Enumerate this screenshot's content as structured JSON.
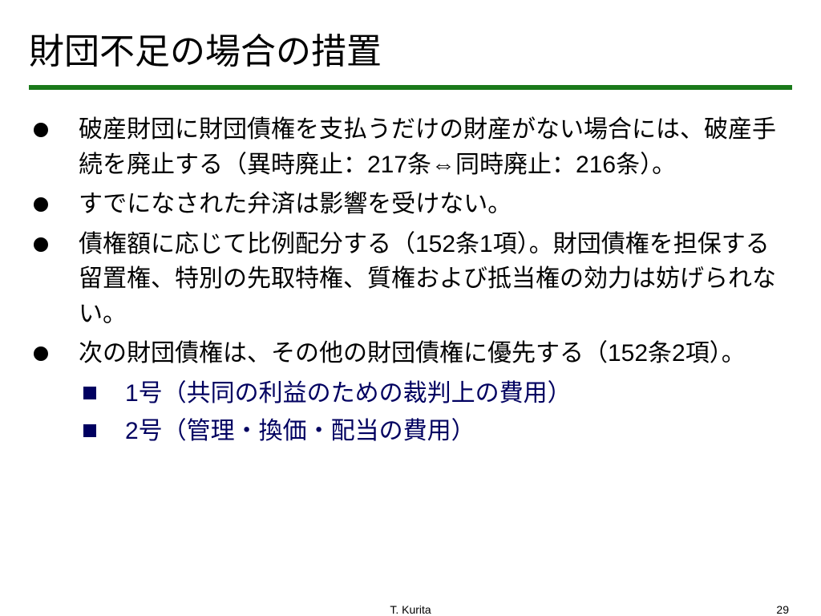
{
  "title": "財団不足の場合の措置",
  "divider_color": "#1a7a1a",
  "bullets": [
    "破産財団に財団債権を支払うだけの財産がない場合には、破産手続を廃止する（異時廃止：217条⇔同時廃止：216条）。",
    "すでになされた弁済は影響を受けない。",
    "債権額に応じて比例配分する（152条1項）。財団債権を担保する留置権、特別の先取特権、質権および抵当権の効力は妨げられない。",
    "次の財団債権は、その他の財団債権に優先する（152条2項）。"
  ],
  "sub_bullets": [
    "1号（共同の利益のための裁判上の費用）",
    "2号（管理・換価・配当の費用）"
  ],
  "sub_bullet_color": "#000060",
  "text_fontsize": 30,
  "title_fontsize": 44,
  "footer": {
    "author": "T. Kurita",
    "page": "29"
  }
}
